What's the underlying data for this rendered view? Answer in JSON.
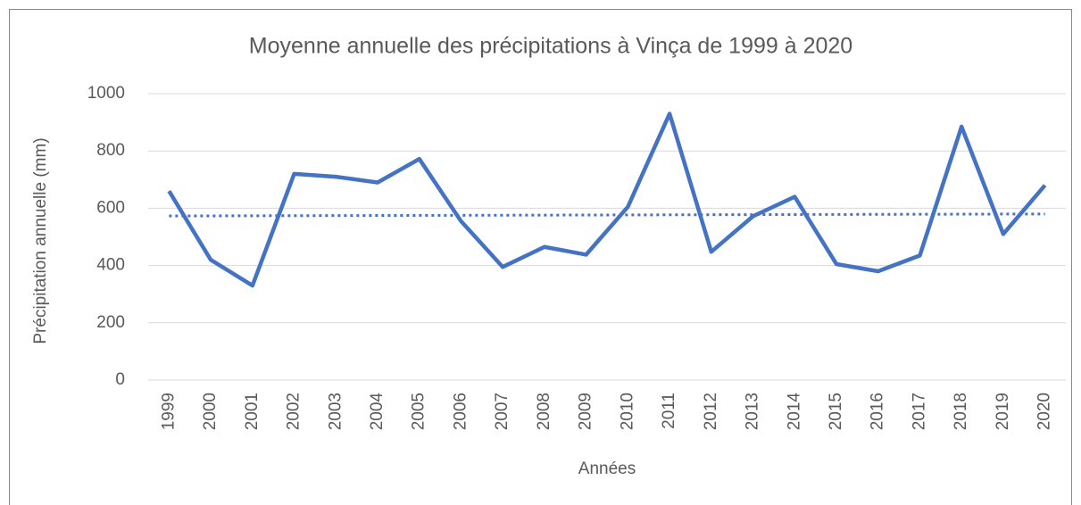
{
  "chart_data": {
    "type": "line",
    "title": "Moyenne annuelle des précipitations à Vinça de 1999 à 2020",
    "xlabel": "Années",
    "ylabel": "Précipitation annuelle (mm)",
    "categories": [
      "1999",
      "2000",
      "2001",
      "2002",
      "2003",
      "2004",
      "2005",
      "2006",
      "2007",
      "2008",
      "2009",
      "2010",
      "2011",
      "2012",
      "2013",
      "2014",
      "2015",
      "2016",
      "2017",
      "2018",
      "2019",
      "2020"
    ],
    "series": [
      {
        "color": "#4472c4",
        "values": [
          660,
          420,
          330,
          720,
          710,
          690,
          772,
          555,
          395,
          465,
          438,
          605,
          930,
          448,
          572,
          640,
          405,
          380,
          435,
          885,
          510,
          680
        ]
      }
    ],
    "trendline": {
      "color": "#4472c4",
      "style": "dotted",
      "values": [
        573,
        580
      ]
    },
    "ylim": [
      0,
      1000
    ],
    "yticks": [
      0,
      200,
      400,
      600,
      800,
      1000
    ],
    "grid": true
  }
}
